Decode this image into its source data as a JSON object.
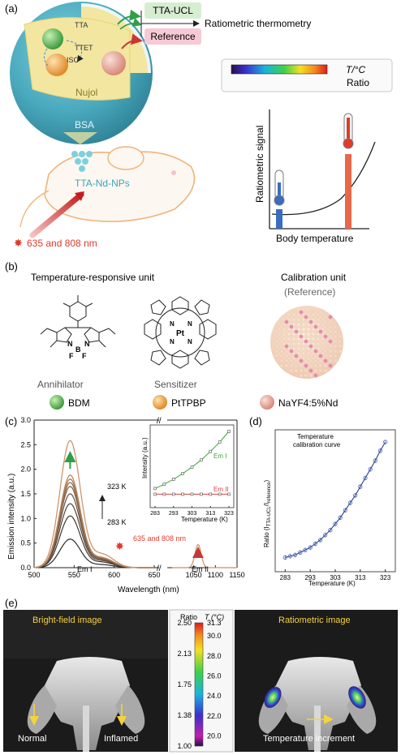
{
  "panels": {
    "a": {
      "label": "(a)",
      "tta_ucl": "TTA-UCL",
      "reference": "Reference",
      "ratiometric": "Ratiometric thermometry",
      "tta": "TTA",
      "ttet": "TTET",
      "isc": "ISC",
      "nujol": "Nujol",
      "bsa": "BSA",
      "np_label": "TTA-Nd-NPs",
      "laser": "635 and 808 nm",
      "colorbar_t": "T/°C",
      "colorbar_ratio": "Ratio",
      "y_label": "Ratiometric signal",
      "x_label": "Body temperature"
    },
    "b": {
      "label": "(b)",
      "unit_left": "Temperature-responsive unit",
      "unit_right": "Calibration unit",
      "unit_right_sub": "(Reference)",
      "annihilator": "Annihilator",
      "sensitizer": "Sensitizer",
      "legend": [
        "BDM",
        "PtTPBP",
        "NaYF4:5%Nd"
      ],
      "pt": "Pt",
      "n": "N",
      "b_atom": "B",
      "f": "F"
    },
    "c": {
      "label": "(c)",
      "ylabel": "Emission intensity (a.u.)",
      "xlabel": "Wavelength (nm)",
      "t_high": "323 K",
      "t_low": "283 K",
      "laser": "635 and 808 nm",
      "em1": "Em I",
      "em2": "Em II",
      "inset_ylabel": "Intensity (a.u.)",
      "inset_xlabel": "Temperature (K)"
    },
    "d": {
      "label": "(d)",
      "title1": "Temperature",
      "title2": "calibration curve",
      "ylabel": "Ratio (I",
      "ylabel_sub1": "TTA-UCL",
      "ylabel_mid": "/I",
      "ylabel_sub2": "reference",
      "ylabel_end": ")",
      "xlabel": "Temperature (K)"
    },
    "e": {
      "label": "(e)",
      "bright_title": "Bright-field image",
      "ratio_title": "Ratiometric image",
      "normal": "Normal",
      "inflamed": "Inflamed",
      "increment": "Temperature increment",
      "cb_ratio": "Ratio",
      "cb_t": "T (°C)",
      "ratio_ticks": [
        "2.50",
        "2.13",
        "1.75",
        "1.38",
        "1.00"
      ],
      "t_ticks": [
        "31.3",
        "30.0",
        "28.0",
        "26.0",
        "24.0",
        "22.0",
        "20.0"
      ]
    }
  },
  "chart_data": [
    {
      "type": "line",
      "panel": "c",
      "xlabel": "Wavelength (nm)",
      "ylabel": "Emission intensity (a.u.)",
      "xlim": [
        500,
        1150
      ],
      "ylim": [
        0,
        3.0
      ],
      "x_ticks": [
        500,
        550,
        600,
        650,
        1050,
        1100,
        1150
      ],
      "y_ticks": [
        0,
        0.5,
        1.0,
        1.5,
        2.0,
        2.5,
        3.0
      ],
      "broken_x_axis": [
        650,
        1000
      ],
      "series_em1_peak_nm": 545,
      "series_em2_peak_nm": 1060,
      "em1_peaks": [
        0.58,
        1.05,
        1.3,
        1.5,
        1.65,
        1.73,
        1.8,
        1.88,
        2.58
      ],
      "em2_peak": 0.47,
      "temperature_range_K": [
        283,
        323
      ],
      "colors": {
        "low": "#2b2b2b",
        "high": "#c98f62"
      }
    },
    {
      "type": "line",
      "panel": "c-inset",
      "xlabel": "Temperature (K)",
      "ylabel": "Intensity (a.u.)",
      "x_ticks": [
        283,
        293,
        303,
        313,
        323
      ],
      "series": [
        {
          "name": "Em I",
          "color": "#3aa63a",
          "x": [
            283,
            288,
            293,
            298,
            303,
            308,
            313,
            318,
            323
          ],
          "values": [
            0.2,
            0.26,
            0.33,
            0.41,
            0.5,
            0.6,
            0.72,
            0.85,
            1.0
          ]
        },
        {
          "name": "Em II",
          "color": "#d64545",
          "x": [
            283,
            288,
            293,
            298,
            303,
            308,
            313,
            318,
            323
          ],
          "values": [
            0.12,
            0.12,
            0.12,
            0.12,
            0.12,
            0.12,
            0.12,
            0.12,
            0.12
          ]
        }
      ]
    },
    {
      "type": "scatter",
      "panel": "d",
      "title": "Temperature calibration curve",
      "xlabel": "Temperature (K)",
      "x_ticks": [
        283,
        293,
        303,
        313,
        323
      ],
      "xlim": [
        279,
        327
      ],
      "series": [
        {
          "name": "",
          "color": "#4a63b8",
          "x": [
            283,
            285,
            287,
            289,
            291,
            293,
            295,
            297,
            299,
            301,
            303,
            305,
            307,
            309,
            311,
            313,
            315,
            317,
            319,
            321,
            323
          ],
          "values": [
            0.05,
            0.06,
            0.07,
            0.09,
            0.11,
            0.13,
            0.16,
            0.19,
            0.23,
            0.27,
            0.32,
            0.37,
            0.43,
            0.49,
            0.55,
            0.62,
            0.69,
            0.76,
            0.83,
            0.91,
            0.98
          ]
        }
      ]
    }
  ],
  "colors": {
    "nujol_yellow": "#f3e6a0",
    "bsa_teal": "#3f9db2",
    "green_dye": "#4caf50",
    "orange_dye": "#f0a040",
    "tta_box": "#d6edd2",
    "ref_box": "#f7c9d6",
    "mouse_outline": "#f0b37a",
    "laser_red": "#e03a2a",
    "bar_blue": "#3a6cc0",
    "bar_orange": "#e8674a"
  }
}
